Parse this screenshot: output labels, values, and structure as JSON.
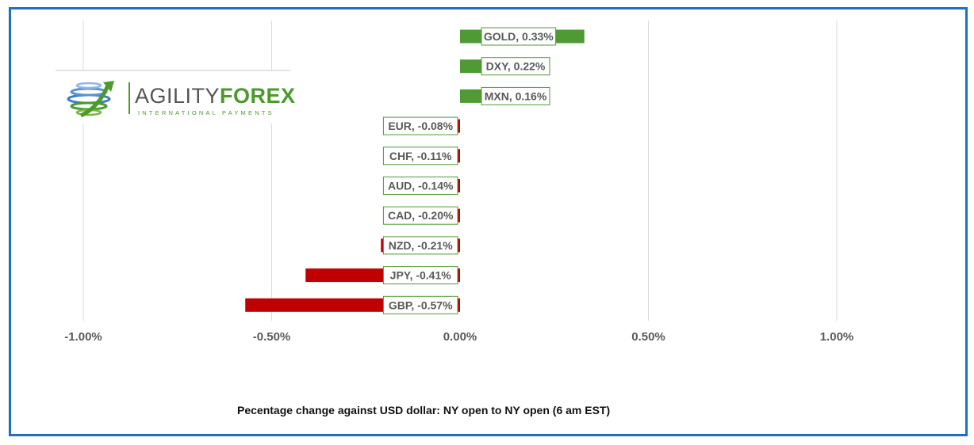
{
  "brand": {
    "name_part1": "AGILITY",
    "name_part2": "FOREX",
    "tagline": "INTERNATIONAL PAYMENTS"
  },
  "caption": "Pecentage change against USD dollar: NY open to NY open (6 am EST)",
  "colors": {
    "positive": "#4f9a35",
    "negative": "#c00000",
    "grid": "#d9d9d9",
    "border": "#1f6fbf"
  },
  "chart_data": {
    "type": "bar",
    "orientation": "horizontal",
    "categories": [
      "GOLD",
      "DXY",
      "MXN",
      "EUR",
      "CHF",
      "AUD",
      "CAD",
      "NZD",
      "JPY",
      "GBP"
    ],
    "values": [
      0.33,
      0.22,
      0.16,
      -0.08,
      -0.11,
      -0.14,
      -0.2,
      -0.21,
      -0.41,
      -0.57
    ],
    "data_labels": [
      "GOLD, 0.33%",
      "DXY, 0.22%",
      "MXN, 0.16%",
      "EUR, -0.08%",
      "CHF, -0.11%",
      "AUD, -0.14%",
      "CAD, -0.20%",
      "NZD, -0.21%",
      "JPY, -0.41%",
      "GBP, -0.57%"
    ],
    "xlim": [
      -1.0,
      1.0
    ],
    "x_ticks": [
      -1.0,
      -0.5,
      0.0,
      0.5,
      1.0
    ],
    "x_tick_labels": [
      "-1.00%",
      "-0.50%",
      "0.00%",
      "0.50%",
      "1.00%"
    ],
    "grid": true,
    "legend": "none",
    "title": ""
  }
}
